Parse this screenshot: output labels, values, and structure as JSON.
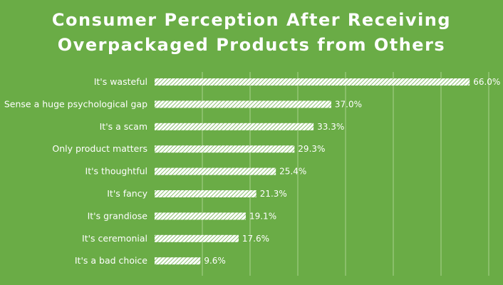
{
  "chart_data": {
    "type": "bar",
    "orientation": "horizontal",
    "title_lines": [
      "Consumer Perception After Receiving",
      "Overpackaged Products from Others"
    ],
    "categories": [
      "It's wasteful",
      "Sense a huge psychological gap",
      "It's a scam",
      "Only product matters",
      "It's thoughtful",
      "It's fancy",
      "It's grandiose",
      "It's ceremonial",
      "It's a bad choice"
    ],
    "values": [
      66.0,
      37.0,
      33.3,
      29.3,
      25.4,
      21.3,
      19.1,
      17.6,
      9.6
    ],
    "value_labels": [
      "66.0%",
      "37.0%",
      "33.3%",
      "29.3%",
      "25.4%",
      "21.3%",
      "19.1%",
      "17.6%",
      "9.6%"
    ],
    "xlim": [
      0,
      70
    ],
    "grid": true,
    "colors": {
      "background": "#6aac46",
      "bar": "#ffffff",
      "text": "#ffffff",
      "grid": "#a9d28f"
    }
  }
}
